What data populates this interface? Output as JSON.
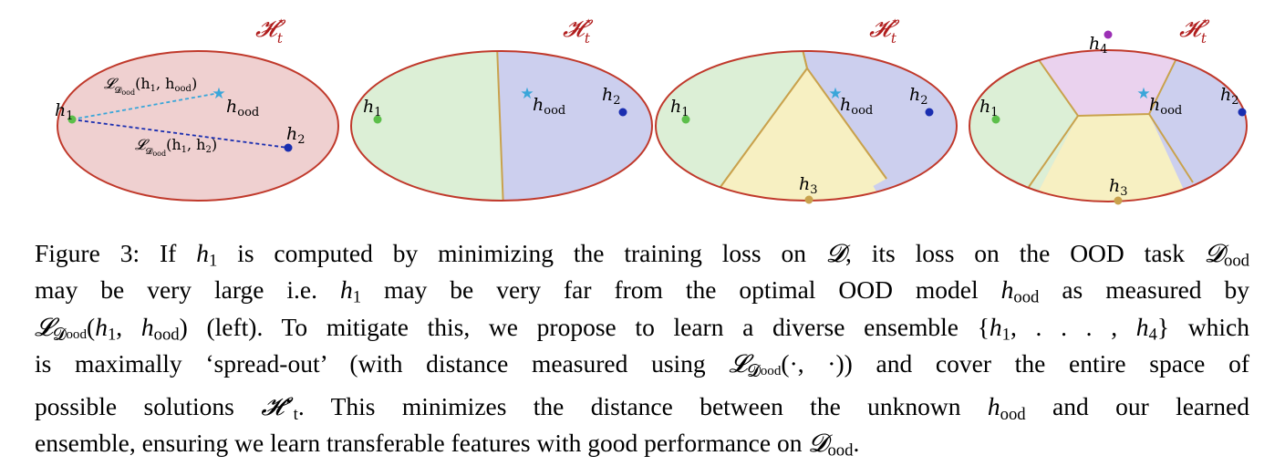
{
  "figure": {
    "space_label": "𝓗",
    "space_sup": "⋆",
    "space_sub": "t",
    "panel1": {
      "h1": "h",
      "h1_sub": "1",
      "h2": "h",
      "h2_sub": "2",
      "hood": "h",
      "hood_sub": "ood",
      "loss_top": "𝓛",
      "loss_top_args": "(h",
      "loss_top_args2": ", h",
      "loss_top_close": ")",
      "loss_sub_D": "𝓓",
      "loss_sub_ood": "ood",
      "h1_arg_sub": "1",
      "hood_arg_sub": "ood",
      "h2_arg_sub": "2"
    },
    "h_sym": "h",
    "sub1": "1",
    "sub2": "2",
    "sub3": "3",
    "sub4": "4",
    "subood": "ood",
    "star_glyph": "★",
    "colors": {
      "ellipse_stroke": "#c0392b",
      "region_red": "#efd0d0",
      "region_green": "#dcefd6",
      "region_blue": "#cccfee",
      "region_yellow": "#f7f0c2",
      "region_purple": "#ead2ee",
      "boundary": "#c9a24d",
      "h1_dot": "#5cbf4a",
      "h2_dot": "#1a2eb0",
      "h3_dot": "#c9a24d",
      "h4_dot": "#9b2fb5",
      "star": "#3aa6d9",
      "label_red": "#b01c1c"
    }
  },
  "caption": {
    "l1_a": "Figure 3:  If ",
    "l1_b": " is computed by minimizing the training loss on ",
    "l1_c": ", its loss on the OOD task ",
    "l2_a": "may be very large i.e.  ",
    "l2_b": " may be very far from the optimal OOD model ",
    "l2_c": " as measured by",
    "l3_a": " (left). To mitigate this, we propose to learn a diverse ensemble ",
    "l3_b": " which",
    "l4_a": "is maximally ‘spread-out’ (with distance measured using ",
    "l4_b": ") and cover the entire space of",
    "l5_a": "possible solutions ",
    "l5_b": ".  This minimizes the distance between the unknown ",
    "l5_c": " and our learned",
    "l6_a": "ensemble, ensuring we learn transferable features with good performance on ",
    "l6_b": ".",
    "h": "h",
    "one": "1",
    "ood": "ood",
    "D": "𝓓",
    "L": "𝓛",
    "H": "𝓗",
    "star": "⋆",
    "t": "t",
    "args_h1hood_open": "(",
    "args_comma": ", ",
    "args_close": ")",
    "ensemble_open": "{",
    "ensemble_mid": ", . . . , ",
    "ensemble_four": "4",
    "ensemble_close": "}",
    "dotargs": "(·, ·)"
  }
}
